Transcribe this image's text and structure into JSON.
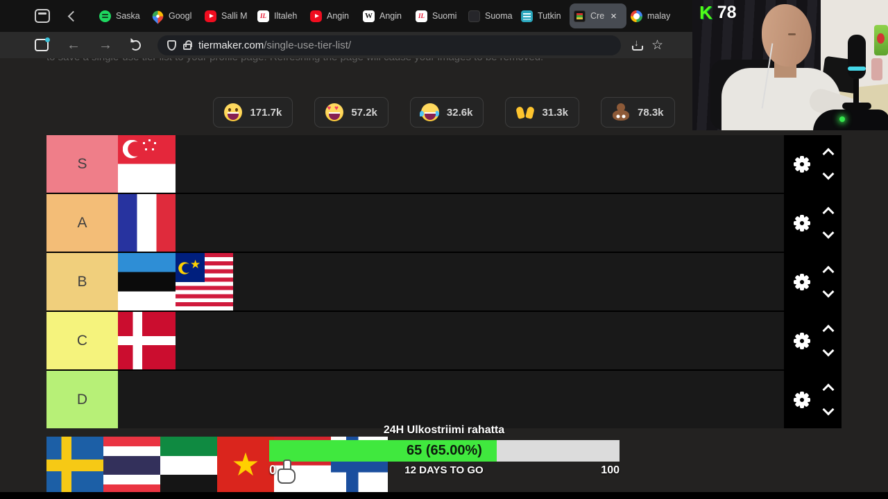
{
  "browser": {
    "tabs": [
      {
        "label": "Saska",
        "icon": "spotify"
      },
      {
        "label": "Googl",
        "icon": "google-maps"
      },
      {
        "label": "Salli M",
        "icon": "youtube"
      },
      {
        "label": "Iltaleh",
        "icon": "iltalehti"
      },
      {
        "label": "Angin",
        "icon": "youtube"
      },
      {
        "label": "Angin",
        "icon": "wikipedia"
      },
      {
        "label": "Suomi",
        "icon": "iltalehti"
      },
      {
        "label": "Suoma",
        "icon": "dark-site"
      },
      {
        "label": "Tutkin",
        "icon": "document"
      },
      {
        "label": "Cre",
        "icon": "tiermaker",
        "active": true,
        "closable": true
      },
      {
        "label": "malay",
        "icon": "google"
      }
    ],
    "url": {
      "domain": "tiermaker.com",
      "path": "/single-use-tier-list/"
    }
  },
  "page": {
    "notice": "to save a single-use tier list to your profile page. Refreshing the page will cause your images to be removed.",
    "reactions": [
      {
        "name": "grinning-face",
        "count": "171.7k"
      },
      {
        "name": "heart-eyes-face",
        "count": "57.2k"
      },
      {
        "name": "joy-face",
        "count": "32.6k"
      },
      {
        "name": "raised-hands",
        "count": "31.3k"
      },
      {
        "name": "poop",
        "count": "78.3k"
      }
    ],
    "tiers": [
      {
        "label": "S",
        "color": "#ef7e89",
        "items": [
          "singapore"
        ]
      },
      {
        "label": "A",
        "color": "#f3bd77",
        "items": [
          "france"
        ]
      },
      {
        "label": "B",
        "color": "#f0cf7c",
        "items": [
          "estonia",
          "malaysia"
        ]
      },
      {
        "label": "C",
        "color": "#f5f37d",
        "items": [
          "denmark"
        ]
      },
      {
        "label": "D",
        "color": "#b7f077",
        "items": []
      }
    ],
    "pool_flags": [
      "sweden",
      "thailand",
      "uae",
      "vietnam",
      "indonesia",
      "finland"
    ]
  },
  "overlay": {
    "title": "24H Ulkostriimi rahatta",
    "value_label": "65 (65.00%)",
    "percent": 65,
    "fill_color": "#40e83e",
    "track_color": "#dcdcdc",
    "min_label": "0",
    "days_label": "12 DAYS TO GO",
    "max_label": "100"
  },
  "webcam": {
    "platform_badge": "K",
    "viewer_count": "78"
  }
}
